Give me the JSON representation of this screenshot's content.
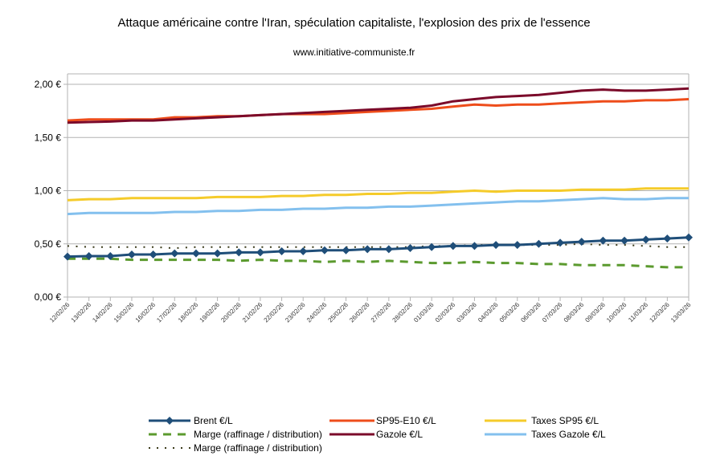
{
  "chart_data": {
    "type": "line",
    "title": "Attaque américaine contre l'Iran, spéculation capitaliste, l'explosion des prix de l'essence",
    "subtitle": "www.initiative-communiste.fr",
    "xlabel": "",
    "ylabel": "",
    "ylim": [
      0,
      2.1
    ],
    "yticks": [
      0,
      0.5,
      1.0,
      1.5,
      2.0
    ],
    "ytick_labels": [
      "0,00 €",
      "0,50 €",
      "1,00 €",
      "1,50 €",
      "2,00 €"
    ],
    "grid": true,
    "legend_position": "bottom",
    "categories": [
      "12/02/26",
      "13/02/26",
      "14/02/26",
      "15/02/26",
      "16/02/26",
      "17/02/26",
      "18/02/26",
      "19/02/26",
      "20/02/26",
      "21/02/26",
      "22/02/26",
      "23/02/26",
      "24/02/26",
      "25/02/26",
      "26/02/26",
      "27/02/26",
      "28/02/26",
      "01/03/26",
      "02/03/26",
      "03/03/26",
      "04/03/26",
      "05/03/26",
      "06/03/26",
      "07/03/26",
      "08/03/26",
      "09/03/26",
      "10/03/26",
      "11/03/26",
      "12/03/26",
      "13/03/26"
    ],
    "series": [
      {
        "name": "Brent €/L",
        "color": "#1f4e79",
        "style": "solid-marker",
        "values": [
          0.38,
          0.385,
          0.385,
          0.4,
          0.4,
          0.41,
          0.41,
          0.41,
          0.42,
          0.42,
          0.43,
          0.43,
          0.44,
          0.44,
          0.45,
          0.45,
          0.46,
          0.47,
          0.48,
          0.48,
          0.49,
          0.49,
          0.5,
          0.51,
          0.52,
          0.53,
          0.53,
          0.54,
          0.55,
          0.56
        ]
      },
      {
        "name": "Marge (raffinage / distribution)",
        "color": "#5b9a2e",
        "style": "dashed",
        "values": [
          0.36,
          0.36,
          0.36,
          0.35,
          0.35,
          0.35,
          0.35,
          0.35,
          0.34,
          0.35,
          0.34,
          0.34,
          0.33,
          0.34,
          0.33,
          0.34,
          0.33,
          0.32,
          0.32,
          0.33,
          0.32,
          0.32,
          0.31,
          0.31,
          0.3,
          0.3,
          0.3,
          0.29,
          0.28,
          0.28
        ]
      },
      {
        "name": "Marge (raffinage / distribution)",
        "color": "#3a3a1a",
        "style": "dotted",
        "values": [
          0.48,
          0.47,
          0.47,
          0.47,
          0.47,
          0.46,
          0.47,
          0.47,
          0.47,
          0.47,
          0.47,
          0.47,
          0.47,
          0.47,
          0.47,
          0.47,
          0.47,
          0.48,
          0.48,
          0.49,
          0.49,
          0.49,
          0.49,
          0.49,
          0.5,
          0.49,
          0.49,
          0.48,
          0.47,
          0.47
        ]
      },
      {
        "name": "SP95-E10 €/L",
        "color": "#ee4d1b",
        "style": "solid",
        "values": [
          1.66,
          1.67,
          1.67,
          1.67,
          1.67,
          1.69,
          1.69,
          1.7,
          1.7,
          1.71,
          1.72,
          1.72,
          1.72,
          1.73,
          1.74,
          1.75,
          1.76,
          1.77,
          1.79,
          1.81,
          1.8,
          1.81,
          1.81,
          1.82,
          1.83,
          1.84,
          1.84,
          1.85,
          1.85,
          1.86
        ]
      },
      {
        "name": "Gazole €/L",
        "color": "#7b0a2a",
        "style": "solid",
        "values": [
          1.64,
          1.645,
          1.65,
          1.66,
          1.66,
          1.67,
          1.68,
          1.69,
          1.7,
          1.71,
          1.72,
          1.73,
          1.74,
          1.75,
          1.76,
          1.77,
          1.78,
          1.8,
          1.84,
          1.86,
          1.88,
          1.89,
          1.9,
          1.92,
          1.94,
          1.95,
          1.94,
          1.94,
          1.95,
          1.96
        ]
      },
      {
        "name": "Taxes SP95 €/L",
        "color": "#f5cb2a",
        "style": "solid",
        "values": [
          0.91,
          0.92,
          0.92,
          0.93,
          0.93,
          0.93,
          0.93,
          0.94,
          0.94,
          0.94,
          0.95,
          0.95,
          0.96,
          0.96,
          0.97,
          0.97,
          0.98,
          0.98,
          0.99,
          1.0,
          0.99,
          1.0,
          1.0,
          1.0,
          1.01,
          1.01,
          1.01,
          1.02,
          1.02,
          1.02
        ]
      },
      {
        "name": "Taxes Gazole €/L",
        "color": "#83c0ee",
        "style": "solid",
        "values": [
          0.78,
          0.79,
          0.79,
          0.79,
          0.79,
          0.8,
          0.8,
          0.81,
          0.81,
          0.82,
          0.82,
          0.83,
          0.83,
          0.84,
          0.84,
          0.85,
          0.85,
          0.86,
          0.87,
          0.88,
          0.89,
          0.9,
          0.9,
          0.91,
          0.92,
          0.93,
          0.92,
          0.92,
          0.93,
          0.93
        ]
      }
    ]
  }
}
